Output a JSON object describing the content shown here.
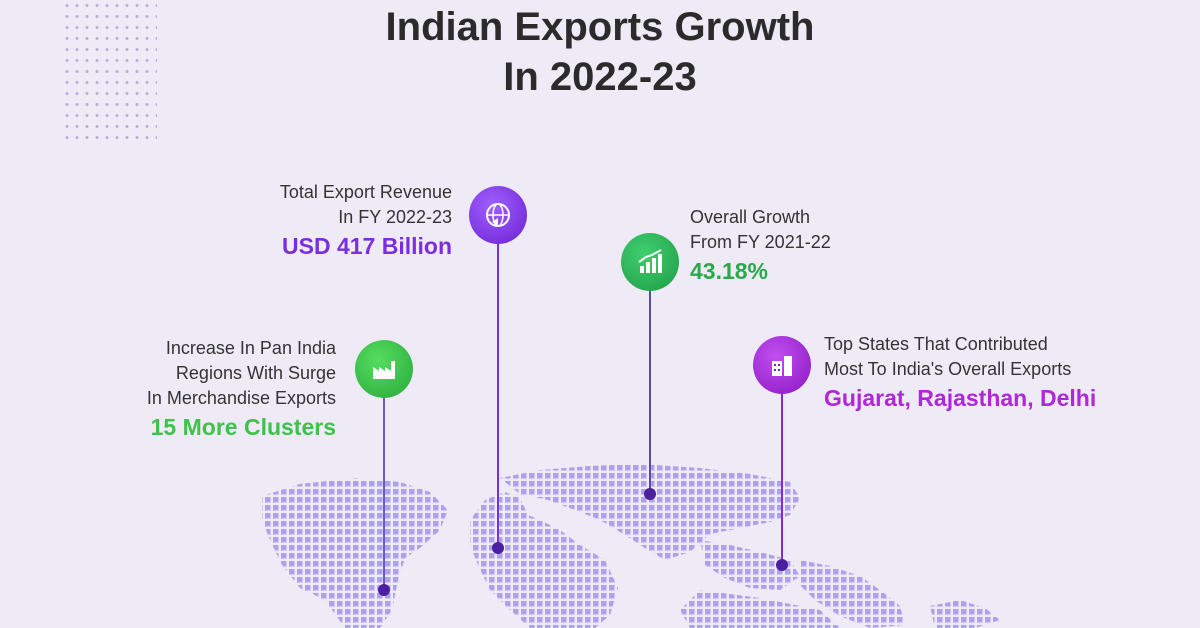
{
  "title": {
    "line1": "Indian Exports Growth",
    "line2": "In 2022-23"
  },
  "colors": {
    "purple": "#7b2ee0",
    "green": "#2aa84a",
    "bright_green": "#3dc24a",
    "magenta": "#b026d8",
    "map": "#a79ae6"
  },
  "stats": {
    "revenue": {
      "label_line1": "Total Export Revenue",
      "label_line2": "In FY 2022-23",
      "value": "USD 417 Billion",
      "icon": "globe-exchange-icon"
    },
    "growth": {
      "label_line1": "Overall Growth",
      "label_line2": "From FY 2021-22",
      "value": "43.18%",
      "icon": "bar-chart-growth-icon"
    },
    "clusters": {
      "label_line1": "Increase In Pan India",
      "label_line2": "Regions With Surge",
      "label_line3": "In Merchandise Exports",
      "value": "15 More Clusters",
      "icon": "factory-icon"
    },
    "states": {
      "label_line1": "Top States That Contributed",
      "label_line2": "Most To India's Overall Exports",
      "value": "Gujarat, Rajasthan, Delhi",
      "icon": "buildings-icon"
    }
  }
}
